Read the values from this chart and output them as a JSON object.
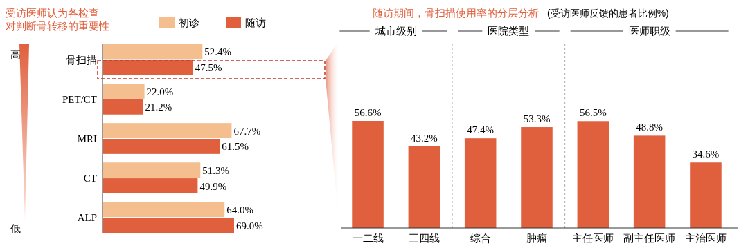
{
  "chart_data": [
    {
      "type": "bar",
      "orientation": "horizontal",
      "title": "受访医师认为各检查对判断骨转移的重要性",
      "categories": [
        "骨扫描",
        "PET/CT",
        "MRI",
        "CT",
        "ALP"
      ],
      "series": [
        {
          "name": "初诊",
          "color": "#f5be8f",
          "values": [
            52.4,
            22.0,
            67.7,
            51.3,
            64.0
          ],
          "value_labels": [
            "52.4%",
            "22.0%",
            "67.7%",
            "51.3%",
            "64.0%"
          ]
        },
        {
          "name": "随访",
          "color": "#e0603e",
          "values": [
            47.5,
            21.2,
            61.5,
            49.9,
            69.0
          ],
          "value_labels": [
            "47.5%",
            "21.2%",
            "61.5%",
            "49.9%",
            "69.0%"
          ]
        }
      ],
      "legend": "top",
      "annotations": [
        "高",
        "低"
      ]
    },
    {
      "type": "bar",
      "title": "随访期间，骨扫描使用率的分层分析",
      "subtitle": "(受访医师反馈的患者比例%)",
      "categories": [
        "一二线",
        "三四线",
        "综合",
        "肿瘤",
        "主任医师",
        "副主任医师",
        "主治医师"
      ],
      "values": [
        56.6,
        43.2,
        47.4,
        53.3,
        56.5,
        48.8,
        34.6
      ],
      "color": "#e0603e",
      "value_labels": [
        "56.6%",
        "43.2%",
        "47.4%",
        "53.3%",
        "56.5%",
        "48.8%",
        "34.6%"
      ],
      "annotations": [
        "城市级别",
        "医院类型",
        "医师职级"
      ]
    }
  ]
}
